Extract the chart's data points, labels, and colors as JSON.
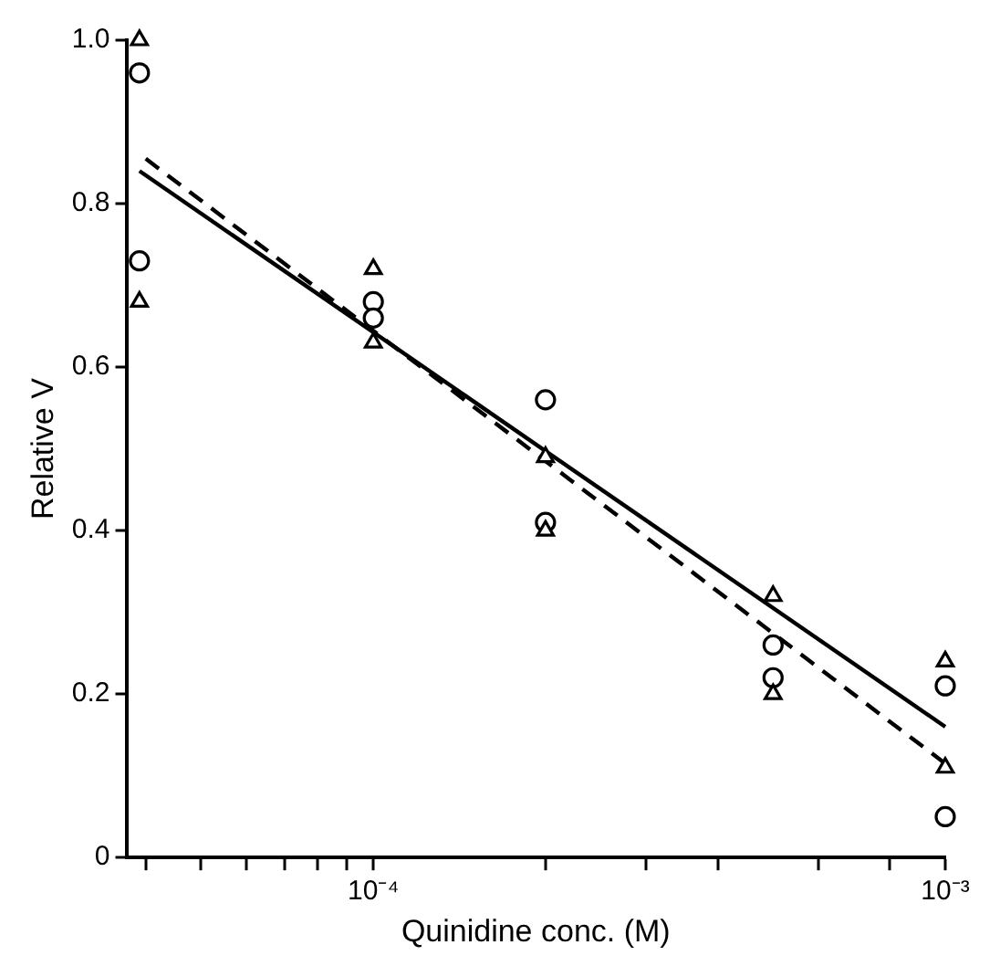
{
  "chart_data": {
    "type": "scatter",
    "xlabel": "Quinidine conc. (M)",
    "ylabel": "Relative V",
    "log": "x",
    "xlim": [
      3.7e-05,
      0.001
    ],
    "xticks": [
      {
        "value": 4e-05,
        "label": null
      },
      {
        "value": 5e-05,
        "label": null
      },
      {
        "value": 6e-05,
        "label": null
      },
      {
        "value": 7e-05,
        "label": null
      },
      {
        "value": 8e-05,
        "label": null
      },
      {
        "value": 9e-05,
        "label": null
      },
      {
        "value": 0.0001,
        "label": "10⁻⁴"
      },
      {
        "value": 0.0002,
        "label": null
      },
      {
        "value": 0.0003,
        "label": null
      },
      {
        "value": 0.0004,
        "label": null
      },
      {
        "value": 0.0006,
        "label": null
      },
      {
        "value": 0.0008,
        "label": null
      },
      {
        "value": 0.001,
        "label": "10⁻³"
      }
    ],
    "ylim": [
      0,
      1.0
    ],
    "yticks": [
      0,
      0.2,
      0.4,
      0.6,
      0.8,
      {
        "value": 1.0,
        "label": "1.0"
      }
    ],
    "grid": false,
    "legend": false,
    "series": [
      {
        "type": "scatter",
        "marker": "triangle",
        "color": "#000000",
        "x": [
          3.9e-05,
          3.9e-05,
          0.0001,
          0.0001,
          0.0002,
          0.0002,
          0.0005,
          0.0005,
          0.001,
          0.001
        ],
        "values": [
          1.0,
          0.68,
          0.72,
          0.63,
          0.49,
          0.4,
          0.32,
          0.2,
          0.24,
          0.11
        ]
      },
      {
        "type": "scatter",
        "marker": "circle",
        "color": "#000000",
        "x": [
          3.9e-05,
          3.9e-05,
          0.0001,
          0.0001,
          0.0002,
          0.0002,
          0.0005,
          0.0005,
          0.001,
          0.001
        ],
        "values": [
          0.96,
          0.73,
          0.68,
          0.66,
          0.56,
          0.41,
          0.26,
          0.22,
          0.21,
          0.05
        ]
      },
      {
        "type": "line",
        "marker": "none",
        "line_style": "solid",
        "color": "#000000",
        "x": [
          3.9e-05,
          0.001
        ],
        "values": [
          0.84,
          0.16
        ]
      },
      {
        "type": "line",
        "marker": "none",
        "line_style": "dashed",
        "color": "#000000",
        "x": [
          4e-05,
          0.001
        ],
        "values": [
          0.855,
          0.115
        ]
      }
    ]
  }
}
